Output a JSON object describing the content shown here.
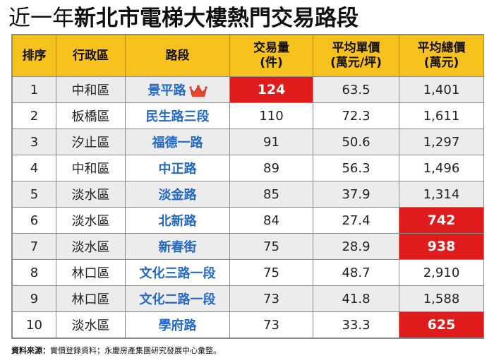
{
  "title": {
    "light": "近一年",
    "bold": "新北市電梯大樓熱門交易路段"
  },
  "headers": [
    "排序",
    "行政區",
    "路段",
    "交易量\n(件)",
    "平均單價\n(萬元/坪)",
    "平均總價\n(萬元)"
  ],
  "rows": [
    {
      "rank": "1",
      "district": "中和區",
      "road": "景平路",
      "volume": "124",
      "unit_price": "63.5",
      "total_price": "1,401",
      "vol_hl": true,
      "total_hl": false,
      "crown": true
    },
    {
      "rank": "2",
      "district": "板橋區",
      "road": "民生路三段",
      "volume": "110",
      "unit_price": "72.3",
      "total_price": "1,611",
      "vol_hl": false,
      "total_hl": false,
      "crown": false
    },
    {
      "rank": "3",
      "district": "汐止區",
      "road": "福德一路",
      "volume": "91",
      "unit_price": "50.6",
      "total_price": "1,297",
      "vol_hl": false,
      "total_hl": false,
      "crown": false
    },
    {
      "rank": "4",
      "district": "中和區",
      "road": "中正路",
      "volume": "89",
      "unit_price": "56.3",
      "total_price": "1,496",
      "vol_hl": false,
      "total_hl": false,
      "crown": false
    },
    {
      "rank": "5",
      "district": "淡水區",
      "road": "淡金路",
      "volume": "85",
      "unit_price": "37.9",
      "total_price": "1,314",
      "vol_hl": false,
      "total_hl": false,
      "crown": false
    },
    {
      "rank": "6",
      "district": "淡水區",
      "road": "北新路",
      "volume": "84",
      "unit_price": "27.4",
      "total_price": "742",
      "vol_hl": false,
      "total_hl": true,
      "crown": false
    },
    {
      "rank": "7",
      "district": "淡水區",
      "road": "新春街",
      "volume": "75",
      "unit_price": "28.9",
      "total_price": "938",
      "vol_hl": false,
      "total_hl": true,
      "crown": false
    },
    {
      "rank": "8",
      "district": "林口區",
      "road": "文化三路一段",
      "volume": "75",
      "unit_price": "48.7",
      "total_price": "2,910",
      "vol_hl": false,
      "total_hl": false,
      "crown": false
    },
    {
      "rank": "9",
      "district": "林口區",
      "road": "文化二路一段",
      "volume": "73",
      "unit_price": "41.8",
      "total_price": "1,588",
      "vol_hl": false,
      "total_hl": false,
      "crown": false
    },
    {
      "rank": "10",
      "district": "淡水區",
      "road": "學府路",
      "volume": "73",
      "unit_price": "33.3",
      "total_price": "625",
      "vol_hl": false,
      "total_hl": true,
      "crown": false
    }
  ],
  "source": {
    "label": "資料來源：",
    "text": "實價登錄資料；永慶房產集團研究發展中心彙整。"
  },
  "colors": {
    "header_bg": "#f7c21c",
    "highlight": "#e01b1b",
    "road_text": "#2468c8",
    "odd_row": "#ececec"
  },
  "icons": {
    "crown": "crown-icon"
  }
}
